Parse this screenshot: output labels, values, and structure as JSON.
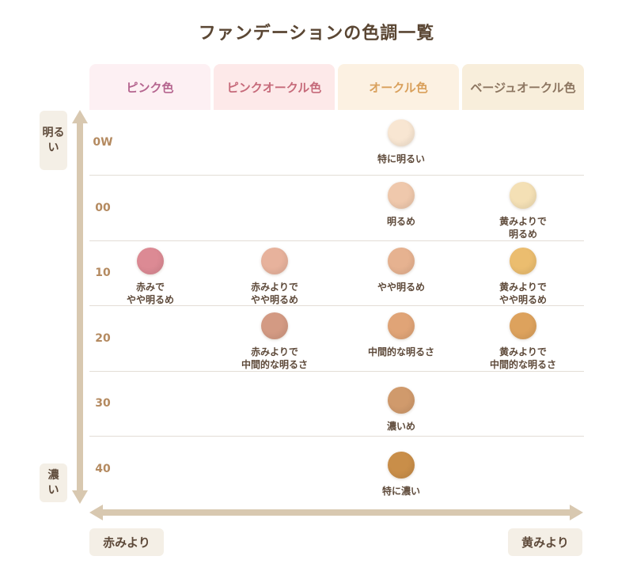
{
  "title": "ファンデーションの色調一覧",
  "columns": [
    {
      "label": "ピンク色",
      "bg": "#fdf0f3",
      "color": "#b5658f"
    },
    {
      "label": "ピンクオークル色",
      "bg": "#fde9e9",
      "color": "#c66a7a"
    },
    {
      "label": "オークル色",
      "bg": "#fcf1e2",
      "color": "#d9a05b"
    },
    {
      "label": "ベージュオークル色",
      "bg": "#f8eedb",
      "color": "#8c7560"
    }
  ],
  "rows": [
    {
      "label": "0W"
    },
    {
      "label": "00"
    },
    {
      "label": "10"
    },
    {
      "label": "20"
    },
    {
      "label": "30"
    },
    {
      "label": "40"
    }
  ],
  "axis": {
    "top_label_lines": [
      "明る",
      "い"
    ],
    "bottom_label_lines": [
      "濃",
      "い"
    ],
    "left_label": "赤みより",
    "right_label": "黄みより"
  },
  "swatches": [
    {
      "col": 2,
      "row": 0,
      "color": "#f8e6d2",
      "text": "特に明るい"
    },
    {
      "col": 2,
      "row": 1,
      "color": "#efc8ac",
      "text": "明るめ"
    },
    {
      "col": 3,
      "row": 1,
      "color": "#f4e0b5",
      "text": "黄みよりで\n明るめ"
    },
    {
      "col": 0,
      "row": 2,
      "color": "#dc8a94",
      "text": "赤みで\nやや明るめ"
    },
    {
      "col": 1,
      "row": 2,
      "color": "#e7b29c",
      "text": "赤みよりで\nやや明るめ"
    },
    {
      "col": 2,
      "row": 2,
      "color": "#e6b290",
      "text": "やや明るめ"
    },
    {
      "col": 3,
      "row": 2,
      "color": "#ebbd6f",
      "text": "黄みよりで\nやや明るめ"
    },
    {
      "col": 1,
      "row": 3,
      "color": "#d39a83",
      "text": "赤みよりで\n中間的な明るさ"
    },
    {
      "col": 2,
      "row": 3,
      "color": "#e0a477",
      "text": "中間的な明るさ"
    },
    {
      "col": 3,
      "row": 3,
      "color": "#dda25d",
      "text": "黄みよりで\n中間的な明るさ"
    },
    {
      "col": 2,
      "row": 4,
      "color": "#d09a6c",
      "text": "濃いめ"
    },
    {
      "col": 2,
      "row": 5,
      "color": "#c98e49",
      "text": "特に濃い"
    }
  ],
  "colors": {
    "arrow": "#d8c8b0",
    "row_label": "#b48a60",
    "badge_bg": "#f4efe6"
  }
}
